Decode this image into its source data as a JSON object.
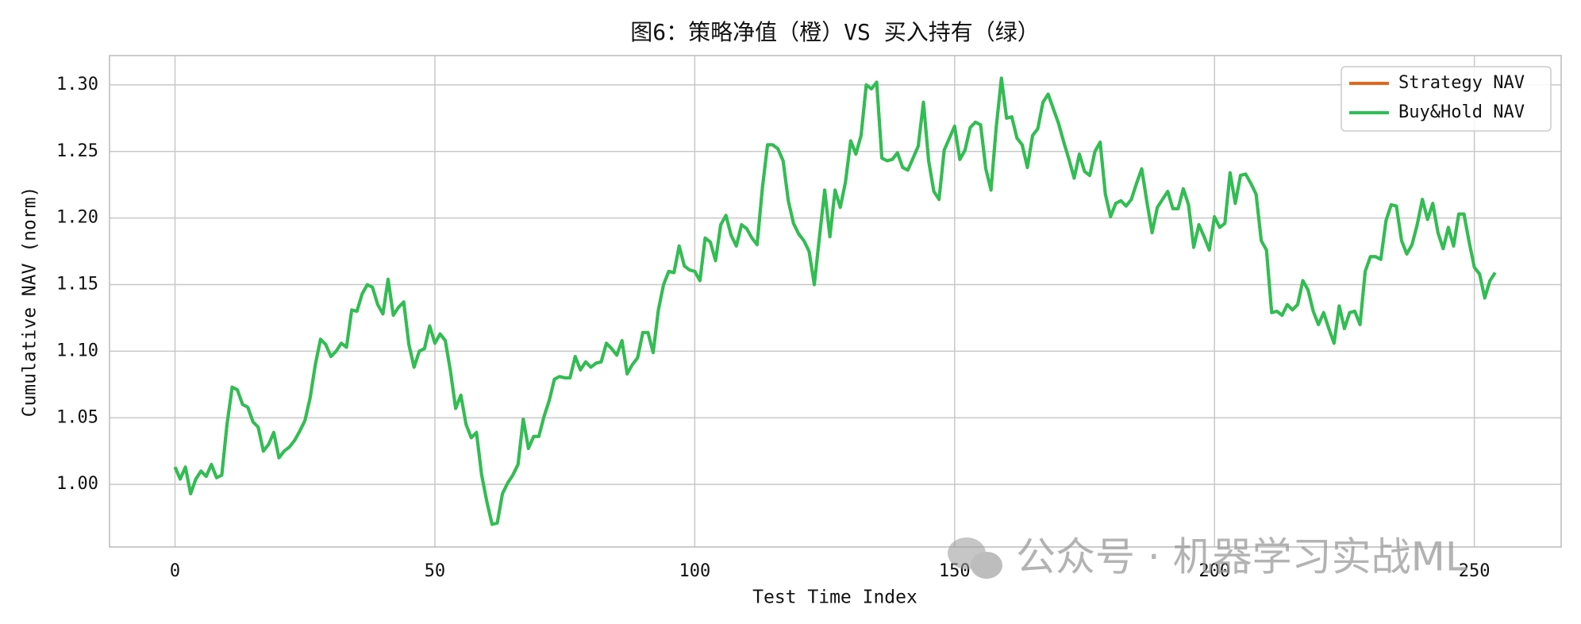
{
  "chart_data": {
    "type": "line",
    "title": "图6：策略净值（橙）VS 买入持有（绿）",
    "xlabel": "Test Time Index",
    "ylabel": "Cumulative NAV (norm)",
    "annotation": "公众号 · 机器学习实战ML",
    "xlim": [
      -12.6,
      266.7
    ],
    "xticks": [
      0,
      50,
      100,
      150,
      200,
      250
    ],
    "ylim": [
      0.953,
      1.322
    ],
    "yticks": [
      {
        "value": 1.0,
        "label": "1.00"
      },
      1.05,
      {
        "value": 1.1,
        "label": "1.10"
      },
      1.15,
      {
        "value": 1.2,
        "label": "1.20"
      },
      1.25,
      {
        "value": 1.3,
        "label": "1.30"
      }
    ],
    "grid": true,
    "legend": "upper right",
    "x": [
      0,
      1,
      2,
      3,
      4,
      5,
      6,
      7,
      8,
      9,
      10,
      11,
      12,
      13,
      14,
      15,
      16,
      17,
      18,
      19,
      20,
      21,
      22,
      23,
      24,
      25,
      26,
      27,
      28,
      29,
      30,
      31,
      32,
      33,
      34,
      35,
      36,
      37,
      38,
      39,
      40,
      41,
      42,
      43,
      44,
      45,
      46,
      47,
      48,
      49,
      50,
      51,
      52,
      53,
      54,
      55,
      56,
      57,
      58,
      59,
      60,
      61,
      62,
      63,
      64,
      65,
      66,
      67,
      68,
      69,
      70,
      71,
      72,
      73,
      74,
      75,
      76,
      77,
      78,
      79,
      80,
      81,
      82,
      83,
      84,
      85,
      86,
      87,
      88,
      89,
      90,
      91,
      92,
      93,
      94,
      95,
      96,
      97,
      98,
      99,
      100,
      101,
      102,
      103,
      104,
      105,
      106,
      107,
      108,
      109,
      110,
      111,
      112,
      113,
      114,
      115,
      116,
      117,
      118,
      119,
      120,
      121,
      122,
      123,
      124,
      125,
      126,
      127,
      128,
      129,
      130,
      131,
      132,
      133,
      134,
      135,
      136,
      137,
      138,
      139,
      140,
      141,
      142,
      143,
      144,
      145,
      146,
      147,
      148,
      149,
      150,
      151,
      152,
      153,
      154,
      155,
      156,
      157,
      158,
      159,
      160,
      161,
      162,
      163,
      164,
      165,
      166,
      167,
      168,
      169,
      170,
      171,
      172,
      173,
      174,
      175,
      176,
      177,
      178,
      179,
      180,
      181,
      182,
      183,
      184,
      185,
      186,
      187,
      188,
      189,
      190,
      191,
      192,
      193,
      194,
      195,
      196,
      197,
      198,
      199,
      200,
      201,
      202,
      203,
      204,
      205,
      206,
      207,
      208,
      209,
      210,
      211,
      212,
      213,
      214,
      215,
      216,
      217,
      218,
      219,
      220,
      221,
      222,
      223,
      224,
      225,
      226,
      227,
      228,
      229,
      230,
      231,
      232,
      233,
      234,
      235,
      236,
      237,
      238,
      239,
      240,
      241,
      242,
      243,
      244,
      245,
      246,
      247,
      248,
      249,
      250,
      251,
      252,
      253,
      254
    ],
    "series": [
      {
        "name": "Strategy NAV",
        "color": "#e0681e",
        "values": [
          1.013,
          1.004,
          1.013,
          0.993,
          1.004,
          1.01,
          1.006,
          1.015,
          1.005,
          1.007,
          1.045,
          1.073,
          1.071,
          1.06,
          1.058,
          1.047,
          1.043,
          1.025,
          1.03,
          1.039,
          1.02,
          1.025,
          1.028,
          1.033,
          1.04,
          1.048,
          1.065,
          1.09,
          1.109,
          1.105,
          1.096,
          1.1,
          1.106,
          1.103,
          1.131,
          1.13,
          1.143,
          1.15,
          1.148,
          1.135,
          1.128,
          1.154,
          1.127,
          1.133,
          1.137,
          1.105,
          1.088,
          1.1,
          1.102,
          1.119,
          1.106,
          1.113,
          1.108,
          1.085,
          1.057,
          1.067,
          1.045,
          1.035,
          1.039,
          1.007,
          0.987,
          0.97,
          0.971,
          0.993,
          1.001,
          1.007,
          1.015,
          1.049,
          1.027,
          1.036,
          1.036,
          1.051,
          1.063,
          1.079,
          1.081,
          1.08,
          1.08,
          1.096,
          1.086,
          1.092,
          1.088,
          1.091,
          1.092,
          1.106,
          1.102,
          1.097,
          1.108,
          1.083,
          1.09,
          1.095,
          1.114,
          1.114,
          1.099,
          1.131,
          1.15,
          1.16,
          1.159,
          1.179,
          1.164,
          1.161,
          1.16,
          1.153,
          1.185,
          1.182,
          1.168,
          1.195,
          1.202,
          1.187,
          1.179,
          1.195,
          1.192,
          1.185,
          1.18,
          1.222,
          1.255,
          1.255,
          1.252,
          1.243,
          1.213,
          1.196,
          1.188,
          1.183,
          1.175,
          1.15,
          1.186,
          1.221,
          1.186,
          1.221,
          1.208,
          1.227,
          1.258,
          1.248,
          1.262,
          1.3,
          1.297,
          1.302,
          1.245,
          1.243,
          1.244,
          1.249,
          1.238,
          1.236,
          1.245,
          1.254,
          1.287,
          1.243,
          1.22,
          1.214,
          1.251,
          1.26,
          1.269,
          1.244,
          1.251,
          1.268,
          1.272,
          1.27,
          1.237,
          1.221,
          1.268,
          1.305,
          1.275,
          1.276,
          1.26,
          1.255,
          1.238,
          1.262,
          1.267,
          1.287,
          1.293,
          1.282,
          1.271,
          1.257,
          1.244,
          1.23,
          1.248,
          1.235,
          1.232,
          1.25,
          1.257,
          1.218,
          1.201,
          1.211,
          1.213,
          1.209,
          1.214,
          1.226,
          1.237,
          1.212,
          1.189,
          1.208,
          1.214,
          1.22,
          1.207,
          1.207,
          1.222,
          1.21,
          1.178,
          1.195,
          1.186,
          1.176,
          1.201,
          1.193,
          1.196,
          1.234,
          1.211,
          1.232,
          1.233,
          1.226,
          1.218,
          1.183,
          1.176,
          1.129,
          1.13,
          1.127,
          1.135,
          1.131,
          1.135,
          1.153,
          1.146,
          1.13,
          1.12,
          1.129,
          1.117,
          1.106,
          1.134,
          1.117,
          1.129,
          1.13,
          1.12,
          1.16,
          1.171,
          1.171,
          1.169,
          1.198,
          1.21,
          1.209,
          1.183,
          1.173,
          1.18,
          1.195,
          1.214,
          1.199,
          1.211,
          1.189,
          1.177,
          1.193,
          1.179,
          1.203,
          1.203,
          1.182,
          1.163,
          1.158,
          1.14,
          1.153,
          1.159
        ]
      },
      {
        "name": "Buy&Hold NAV",
        "color": "#2dbf55",
        "values": [
          1.013,
          1.004,
          1.013,
          0.993,
          1.004,
          1.01,
          1.006,
          1.015,
          1.005,
          1.007,
          1.045,
          1.073,
          1.071,
          1.06,
          1.058,
          1.047,
          1.043,
          1.025,
          1.03,
          1.039,
          1.02,
          1.025,
          1.028,
          1.033,
          1.04,
          1.048,
          1.065,
          1.09,
          1.109,
          1.105,
          1.096,
          1.1,
          1.106,
          1.103,
          1.131,
          1.13,
          1.143,
          1.15,
          1.148,
          1.135,
          1.128,
          1.154,
          1.127,
          1.133,
          1.137,
          1.105,
          1.088,
          1.1,
          1.102,
          1.119,
          1.106,
          1.113,
          1.108,
          1.085,
          1.057,
          1.067,
          1.045,
          1.035,
          1.039,
          1.007,
          0.987,
          0.97,
          0.971,
          0.993,
          1.001,
          1.007,
          1.015,
          1.049,
          1.027,
          1.036,
          1.036,
          1.051,
          1.063,
          1.079,
          1.081,
          1.08,
          1.08,
          1.096,
          1.086,
          1.092,
          1.088,
          1.091,
          1.092,
          1.106,
          1.102,
          1.097,
          1.108,
          1.083,
          1.09,
          1.095,
          1.114,
          1.114,
          1.099,
          1.131,
          1.15,
          1.16,
          1.159,
          1.179,
          1.164,
          1.161,
          1.16,
          1.153,
          1.185,
          1.182,
          1.168,
          1.195,
          1.202,
          1.187,
          1.179,
          1.195,
          1.192,
          1.185,
          1.18,
          1.222,
          1.255,
          1.255,
          1.252,
          1.243,
          1.213,
          1.196,
          1.188,
          1.183,
          1.175,
          1.15,
          1.186,
          1.221,
          1.186,
          1.221,
          1.208,
          1.227,
          1.258,
          1.248,
          1.262,
          1.3,
          1.297,
          1.302,
          1.245,
          1.243,
          1.244,
          1.249,
          1.238,
          1.236,
          1.245,
          1.254,
          1.287,
          1.243,
          1.22,
          1.214,
          1.251,
          1.26,
          1.269,
          1.244,
          1.251,
          1.268,
          1.272,
          1.27,
          1.237,
          1.221,
          1.268,
          1.305,
          1.275,
          1.276,
          1.26,
          1.255,
          1.238,
          1.262,
          1.267,
          1.287,
          1.293,
          1.282,
          1.271,
          1.257,
          1.244,
          1.23,
          1.248,
          1.235,
          1.232,
          1.25,
          1.257,
          1.218,
          1.201,
          1.211,
          1.213,
          1.209,
          1.214,
          1.226,
          1.237,
          1.212,
          1.189,
          1.208,
          1.214,
          1.22,
          1.207,
          1.207,
          1.222,
          1.21,
          1.178,
          1.195,
          1.186,
          1.176,
          1.201,
          1.193,
          1.196,
          1.234,
          1.211,
          1.232,
          1.233,
          1.226,
          1.218,
          1.183,
          1.176,
          1.129,
          1.13,
          1.127,
          1.135,
          1.131,
          1.135,
          1.153,
          1.146,
          1.13,
          1.12,
          1.129,
          1.117,
          1.106,
          1.134,
          1.117,
          1.129,
          1.13,
          1.12,
          1.16,
          1.171,
          1.171,
          1.169,
          1.198,
          1.21,
          1.209,
          1.183,
          1.173,
          1.18,
          1.195,
          1.214,
          1.199,
          1.211,
          1.189,
          1.177,
          1.193,
          1.179,
          1.203,
          1.203,
          1.182,
          1.163,
          1.158,
          1.14,
          1.153,
          1.159
        ]
      }
    ]
  }
}
